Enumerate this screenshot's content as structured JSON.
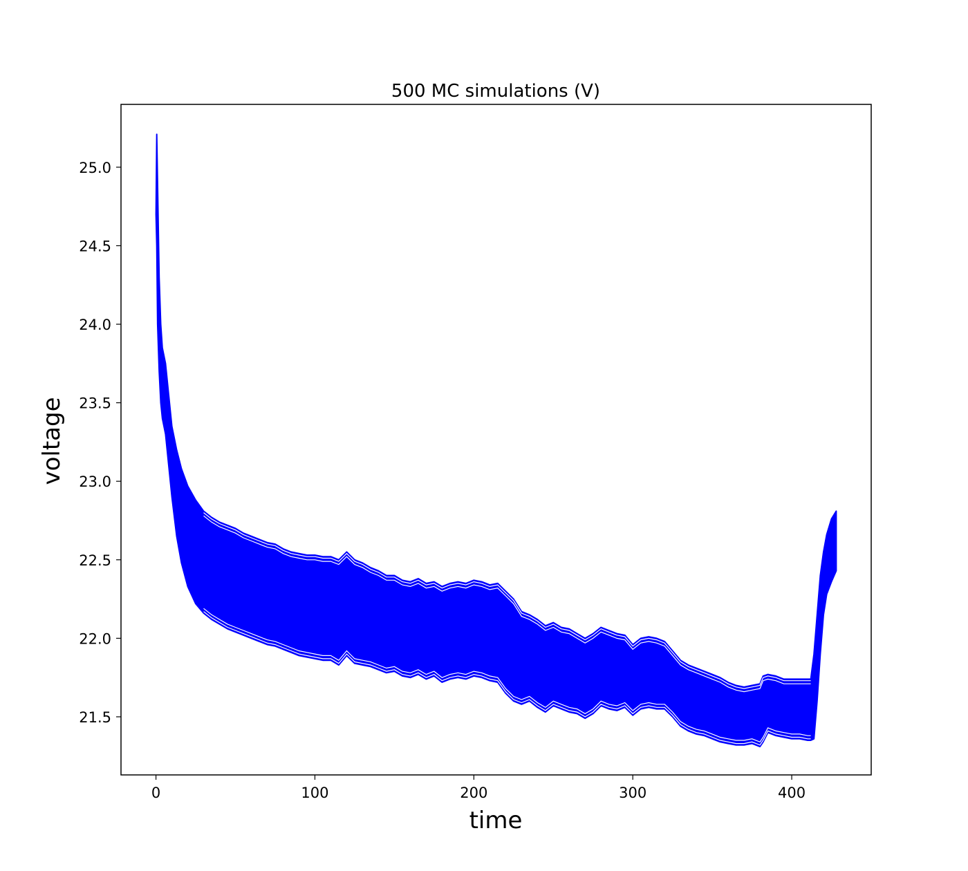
{
  "chart_data": {
    "type": "line",
    "title": "500 MC simulations (V)",
    "xlabel": "time",
    "ylabel": "voltage",
    "xlim": [
      -22,
      450
    ],
    "ylim": [
      21.13,
      25.4
    ],
    "xticks": [
      0,
      100,
      200,
      300,
      400
    ],
    "xtick_labels": [
      "0",
      "100",
      "200",
      "300",
      "400"
    ],
    "yticks": [
      21.5,
      22.0,
      22.5,
      23.0,
      23.5,
      24.0,
      24.5,
      25.0
    ],
    "ytick_labels": [
      "21.5",
      "22.0",
      "22.5",
      "23.0",
      "23.5",
      "24.0",
      "24.5",
      "25.0"
    ],
    "grid": false,
    "color": "#0000ff",
    "series": [
      {
        "role": "upper envelope",
        "x": [
          0,
          0.5,
          1,
          2,
          3,
          4,
          6,
          8,
          10,
          13,
          16,
          20,
          25,
          30,
          35,
          40,
          45,
          50,
          55,
          60,
          65,
          70,
          75,
          80,
          85,
          90,
          95,
          100,
          105,
          110,
          115,
          120,
          125,
          130,
          135,
          140,
          145,
          150,
          155,
          160,
          165,
          170,
          175,
          180,
          185,
          190,
          195,
          200,
          205,
          210,
          215,
          220,
          225,
          230,
          235,
          240,
          245,
          250,
          255,
          260,
          265,
          270,
          275,
          280,
          285,
          290,
          295,
          300,
          305,
          310,
          315,
          320,
          325,
          330,
          335,
          340,
          345,
          350,
          355,
          360,
          365,
          370,
          375,
          380,
          382,
          385,
          390,
          395,
          400,
          405,
          410,
          412,
          414,
          416,
          418,
          420,
          422,
          425,
          428
        ],
        "y": [
          24.7,
          25.21,
          24.9,
          24.3,
          24.0,
          23.85,
          23.75,
          23.55,
          23.35,
          23.2,
          23.08,
          22.97,
          22.88,
          22.81,
          22.77,
          22.74,
          22.72,
          22.7,
          22.67,
          22.65,
          22.63,
          22.61,
          22.6,
          22.57,
          22.55,
          22.54,
          22.53,
          22.53,
          22.52,
          22.52,
          22.5,
          22.55,
          22.5,
          22.48,
          22.45,
          22.43,
          22.4,
          22.4,
          22.37,
          22.36,
          22.38,
          22.35,
          22.36,
          22.33,
          22.35,
          22.36,
          22.35,
          22.37,
          22.36,
          22.34,
          22.35,
          22.3,
          22.25,
          22.17,
          22.15,
          22.12,
          22.08,
          22.1,
          22.07,
          22.06,
          22.03,
          22.0,
          22.03,
          22.07,
          22.05,
          22.03,
          22.02,
          21.96,
          22.0,
          22.01,
          22.0,
          21.98,
          21.92,
          21.86,
          21.83,
          21.81,
          21.79,
          21.77,
          21.75,
          21.72,
          21.7,
          21.69,
          21.7,
          21.71,
          21.76,
          21.77,
          21.76,
          21.74,
          21.74,
          21.74,
          21.74,
          21.74,
          21.9,
          22.15,
          22.4,
          22.55,
          22.66,
          22.76,
          22.81
        ]
      },
      {
        "role": "lower envelope",
        "x": [
          0,
          0.5,
          1,
          2,
          3,
          4,
          6,
          8,
          10,
          13,
          16,
          20,
          25,
          30,
          35,
          40,
          45,
          50,
          55,
          60,
          65,
          70,
          75,
          80,
          85,
          90,
          95,
          100,
          105,
          110,
          115,
          120,
          125,
          130,
          135,
          140,
          145,
          150,
          155,
          160,
          165,
          170,
          175,
          180,
          185,
          190,
          195,
          200,
          205,
          210,
          215,
          220,
          225,
          230,
          235,
          240,
          245,
          250,
          255,
          260,
          265,
          270,
          275,
          280,
          285,
          290,
          295,
          300,
          305,
          310,
          315,
          320,
          325,
          330,
          335,
          340,
          345,
          350,
          355,
          360,
          365,
          370,
          375,
          380,
          382,
          385,
          390,
          395,
          400,
          405,
          410,
          412,
          414,
          416,
          418,
          420,
          422,
          425,
          428
        ],
        "y": [
          24.7,
          24.5,
          24.0,
          23.7,
          23.5,
          23.4,
          23.3,
          23.1,
          22.9,
          22.65,
          22.48,
          22.33,
          22.22,
          22.16,
          22.12,
          22.09,
          22.06,
          22.04,
          22.02,
          22.0,
          21.98,
          21.96,
          21.95,
          21.93,
          21.91,
          21.89,
          21.88,
          21.87,
          21.86,
          21.86,
          21.83,
          21.89,
          21.84,
          21.83,
          21.82,
          21.8,
          21.78,
          21.79,
          21.76,
          21.75,
          21.77,
          21.74,
          21.76,
          21.72,
          21.74,
          21.75,
          21.74,
          21.76,
          21.75,
          21.73,
          21.72,
          21.65,
          21.6,
          21.58,
          21.6,
          21.56,
          21.53,
          21.57,
          21.55,
          21.53,
          21.52,
          21.49,
          21.52,
          21.57,
          21.55,
          21.54,
          21.56,
          21.51,
          21.55,
          21.56,
          21.55,
          21.55,
          21.5,
          21.44,
          21.41,
          21.39,
          21.38,
          21.36,
          21.34,
          21.33,
          21.32,
          21.32,
          21.33,
          21.31,
          21.34,
          21.4,
          21.38,
          21.37,
          21.36,
          21.36,
          21.35,
          21.35,
          21.36,
          21.6,
          21.9,
          22.15,
          22.28,
          22.36,
          22.43
        ]
      }
    ],
    "boundary_curves": [
      {
        "role": "top curve 1",
        "offset": -0.02
      },
      {
        "role": "top curve 2",
        "offset": -0.06
      },
      {
        "role": "bottom curve 1",
        "offset": 0.02
      },
      {
        "role": "bottom curve 2",
        "offset": 0.06
      }
    ]
  }
}
